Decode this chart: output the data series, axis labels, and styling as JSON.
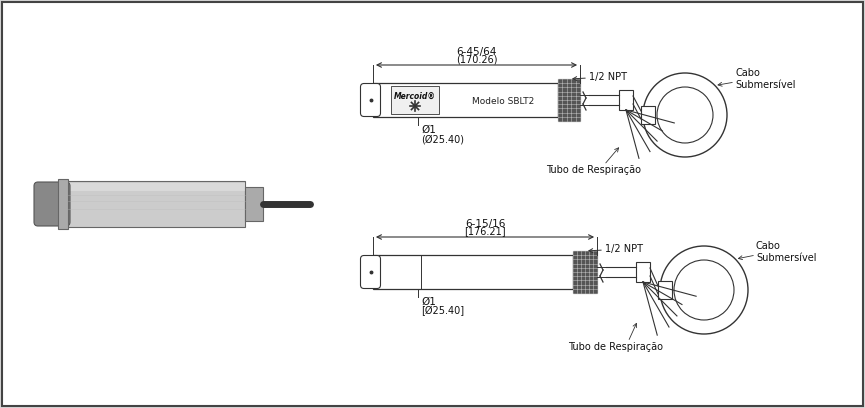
{
  "bg_color": "#d8d8d8",
  "border_color": "#444444",
  "line_color": "#333333",
  "diagram1": {
    "label_length": "6-45/64",
    "label_length2": "(170.26)",
    "label_npt": "1/2 NPT",
    "label_model": "Modelo SBLT2",
    "label_diam": "Ø1",
    "label_diam2": "(Ø25.40)",
    "label_cabo": "Cabo\nSubmersível",
    "label_tubo": "Tubo de Respiração"
  },
  "diagram2": {
    "label_length": "6-15/16",
    "label_length2": "[176.21]",
    "label_npt": "1/2 NPT",
    "label_diam": "Ø1",
    "label_diam2": "[Ø25.40]",
    "label_cabo": "Cabo\nSubmersível",
    "label_tubo": "Tubo de Respiração"
  }
}
